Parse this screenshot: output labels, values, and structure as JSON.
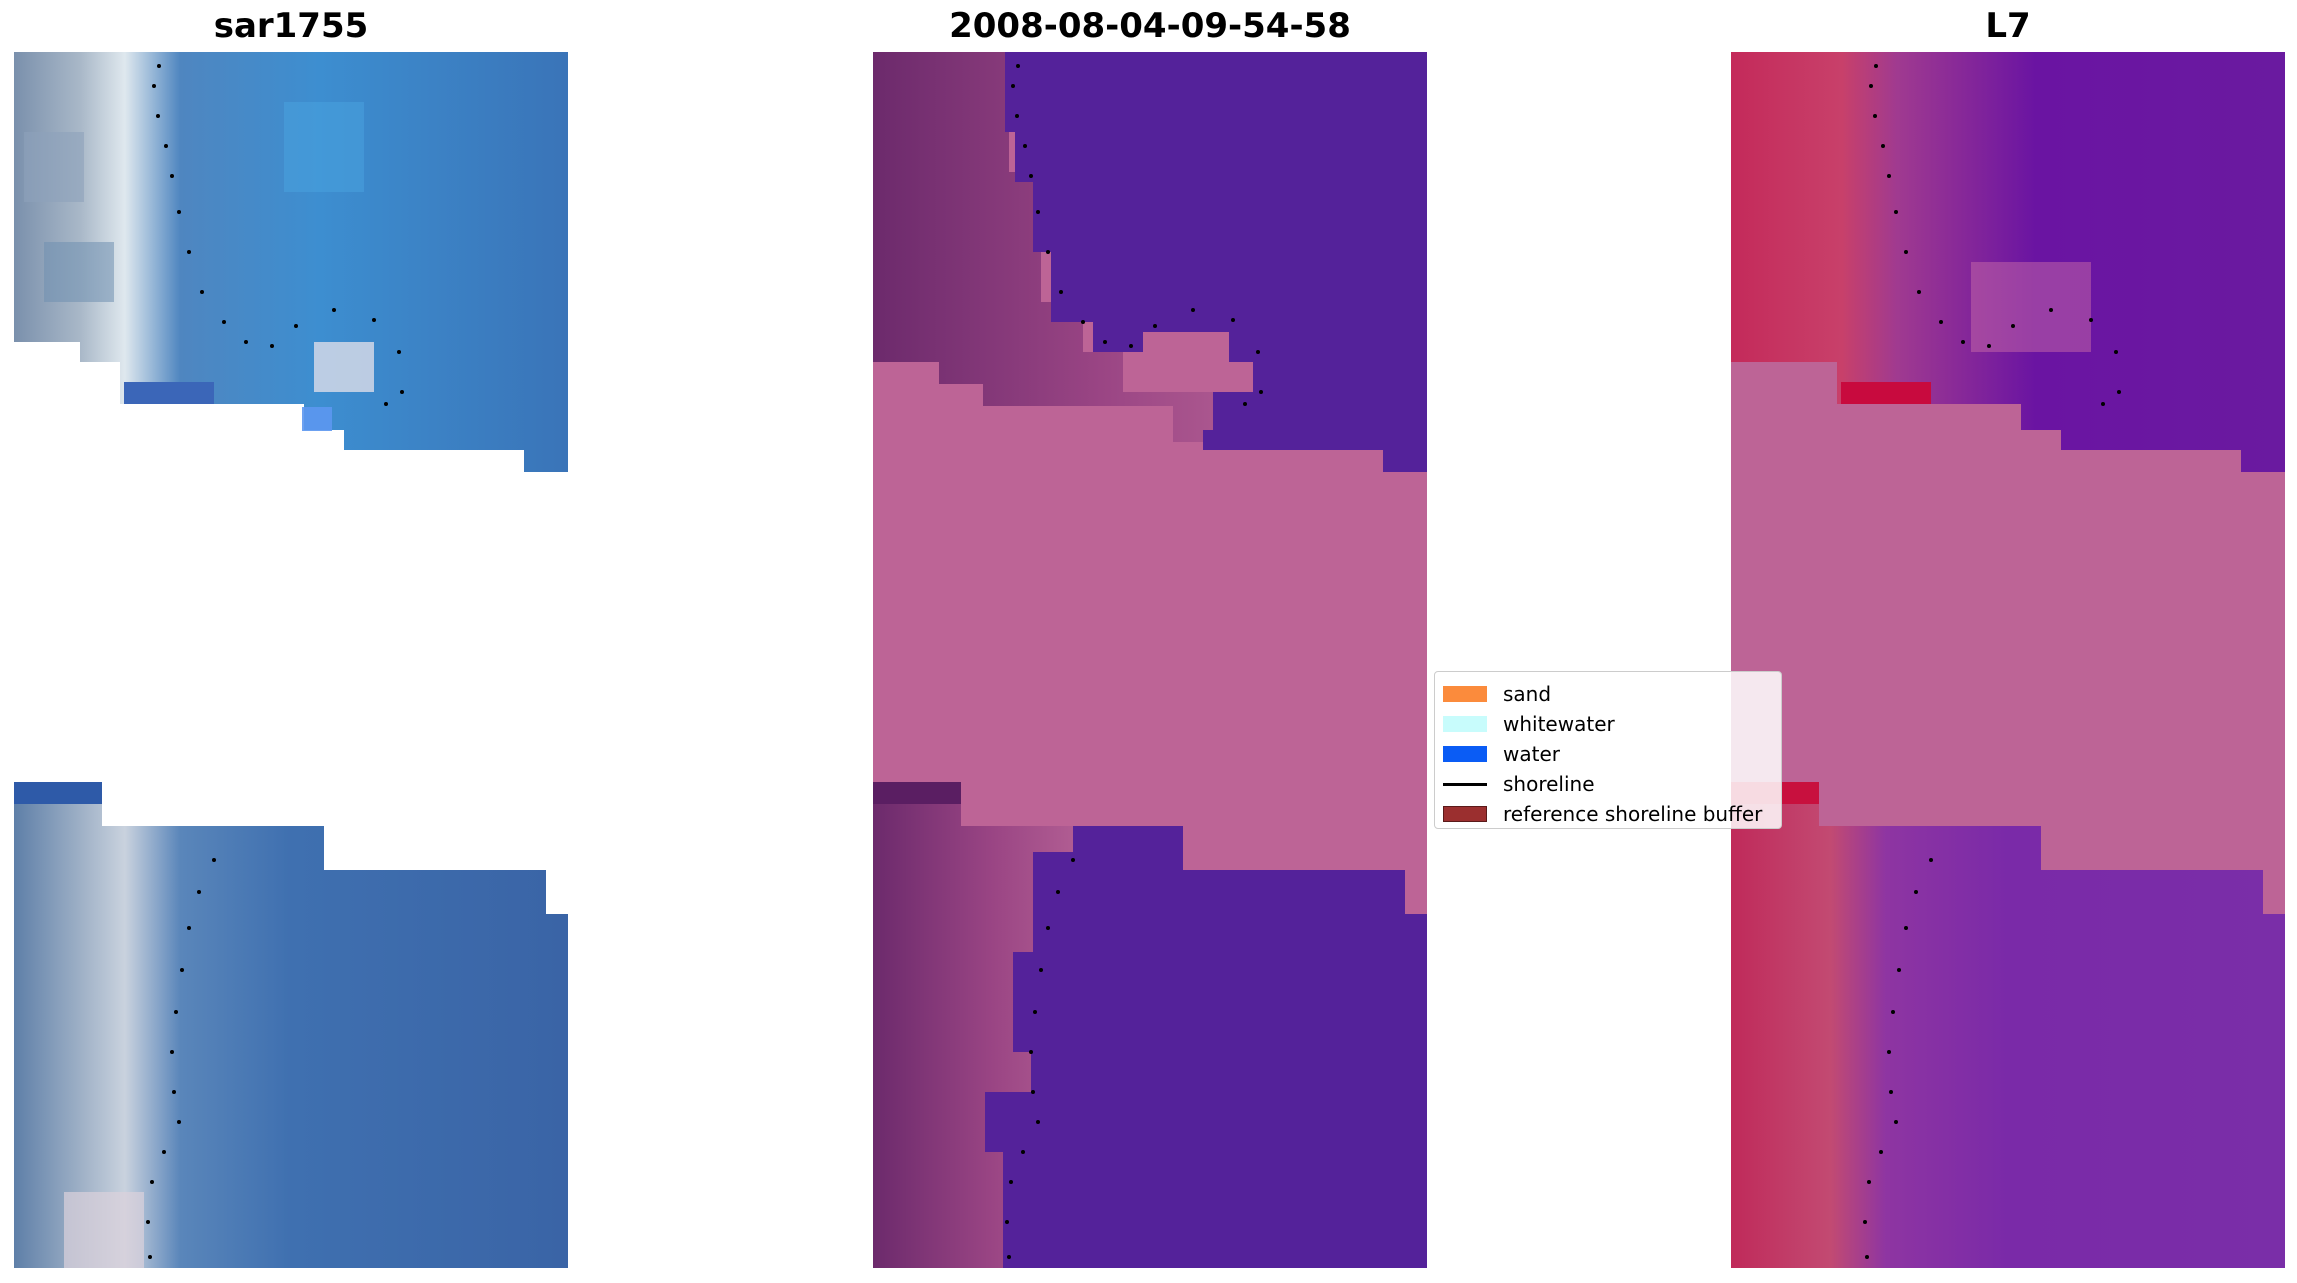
{
  "panels": [
    {
      "title": "sar1755"
    },
    {
      "title": "2008-08-04-09-54-58"
    },
    {
      "title": "L7"
    }
  ],
  "legend": {
    "items": [
      {
        "label": "sand",
        "color": "#fb8b3c",
        "kind": "patch"
      },
      {
        "label": "whitewater",
        "color": "#c8fcfc",
        "kind": "patch"
      },
      {
        "label": "water",
        "color": "#0a5cf5",
        "kind": "patch"
      },
      {
        "label": "shoreline",
        "color": "#000000",
        "kind": "line"
      },
      {
        "label": "reference shoreline buffer",
        "color": "#9b2f2f",
        "kind": "patch"
      }
    ]
  },
  "colors": {
    "rgb_water": "#3c6fb4",
    "rgb_beach": "#b4bcc8",
    "class_water": "#54229a",
    "class_land": "#8c3a78",
    "class_buffer": "#bd6496",
    "mndwi_land": "#c02a5c",
    "mndwi_water": "#6a1aa0"
  }
}
